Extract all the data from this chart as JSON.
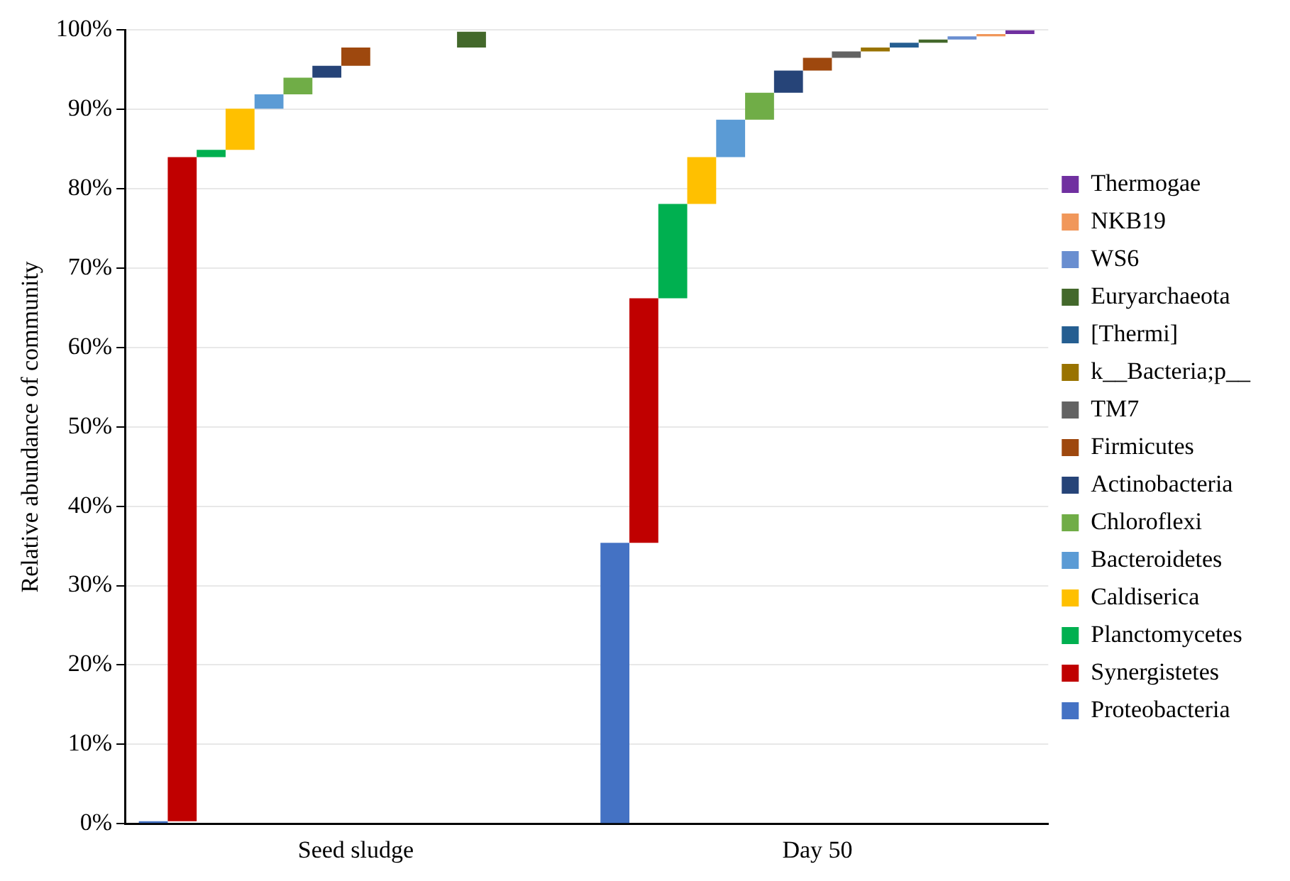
{
  "chart_data": {
    "type": "bar",
    "ylabel": "Relative abundance of community",
    "categories": [
      "Seed sludge",
      "Day 50"
    ],
    "series": [
      {
        "name": "Proteobacteria",
        "color": "#4472c4",
        "base": [
          0,
          0
        ],
        "values": [
          0.3,
          35.4
        ]
      },
      {
        "name": "Synergistetes",
        "color": "#c00000",
        "base": [
          0.3,
          35.4
        ],
        "values": [
          83.7,
          30.8
        ]
      },
      {
        "name": "Planctomycetes",
        "color": "#00b050",
        "base": [
          84,
          66.2
        ],
        "values": [
          0.9,
          11.9
        ]
      },
      {
        "name": "Caldiserica",
        "color": "#ffc000",
        "base": [
          84.9,
          78.1
        ],
        "values": [
          5.2,
          5.9
        ]
      },
      {
        "name": "Bacteroidetes",
        "color": "#5b9bd5",
        "base": [
          90.1,
          84
        ],
        "values": [
          1.8,
          4.7
        ]
      },
      {
        "name": "Chloroflexi",
        "color": "#70ad47",
        "base": [
          91.9,
          88.7
        ],
        "values": [
          2.1,
          3.4
        ]
      },
      {
        "name": "Actinobacteria",
        "color": "#264478",
        "base": [
          94,
          92.1
        ],
        "values": [
          1.5,
          2.8
        ]
      },
      {
        "name": "Firmicutes",
        "color": "#9e480e",
        "base": [
          95.5,
          94.9
        ],
        "values": [
          2.3,
          1.6
        ]
      },
      {
        "name": "TM7",
        "color": "#636363",
        "base": [
          null,
          96.5
        ],
        "values": [
          null,
          0.8
        ]
      },
      {
        "name": "k__Bacteria;p__",
        "color": "#997300",
        "base": [
          null,
          97.3
        ],
        "values": [
          null,
          0.5
        ]
      },
      {
        "name": "[Thermi]",
        "color": "#255e91",
        "base": [
          null,
          97.8
        ],
        "values": [
          null,
          0.6
        ]
      },
      {
        "name": "Euryarchaeota",
        "color": "#43682b",
        "base": [
          97.8,
          98.4
        ],
        "values": [
          2.0,
          0.4
        ]
      },
      {
        "name": "WS6",
        "color": "#698ed0",
        "base": [
          null,
          98.8
        ],
        "values": [
          null,
          0.4
        ]
      },
      {
        "name": "NKB19",
        "color": "#f1975a",
        "base": [
          null,
          99.2
        ],
        "values": [
          null,
          0.3
        ]
      },
      {
        "name": "Thermogae",
        "color": "#7030a0",
        "base": [
          null,
          99.5
        ],
        "values": [
          null,
          0.5
        ]
      }
    ],
    "ylim": [
      0,
      100
    ],
    "yticks": [
      {
        "value": 0,
        "label": "0%"
      },
      {
        "value": 10,
        "label": "10%"
      },
      {
        "value": 20,
        "label": "20%"
      },
      {
        "value": 30,
        "label": "30%"
      },
      {
        "value": 40,
        "label": "40%"
      },
      {
        "value": 50,
        "label": "50%"
      },
      {
        "value": 60,
        "label": "60%"
      },
      {
        "value": 70,
        "label": "70%"
      },
      {
        "value": 80,
        "label": "80%"
      },
      {
        "value": 90,
        "label": "90%"
      },
      {
        "value": 100,
        "label": "100%"
      }
    ],
    "grid": "y",
    "legend": "right"
  }
}
